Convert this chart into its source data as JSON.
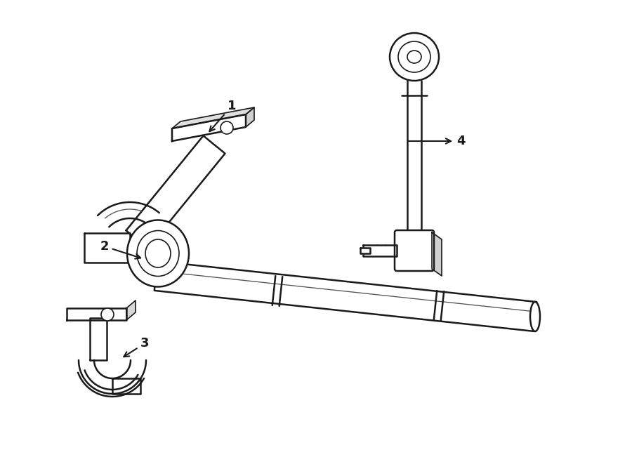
{
  "bg_color": "#ffffff",
  "line_color": "#1a1a1a",
  "lw_main": 1.8,
  "lw_thin": 1.2,
  "figsize": [
    9.0,
    6.61
  ],
  "dpi": 100,
  "xlim": [
    0,
    900
  ],
  "ylim": [
    0,
    661
  ]
}
